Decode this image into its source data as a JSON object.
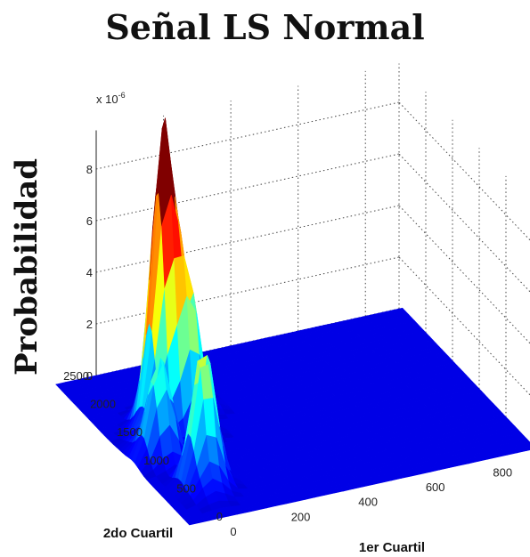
{
  "chart_data": {
    "type": "surface",
    "title": "Señal  LS Normal",
    "zlabel": "Probabilidad",
    "xlabel": "1er Cuartil",
    "ylabel": "2do Cuartil",
    "z_exponent_label": "x 10",
    "z_exponent": "-6",
    "colormap": "jet",
    "grid": true,
    "x_ticks": [
      "0",
      "200",
      "400",
      "600",
      "800"
    ],
    "y_ticks": [
      "0",
      "500",
      "1000",
      "1500",
      "2000",
      "2500"
    ],
    "z_ticks": [
      "0",
      "2",
      "4",
      "6",
      "8"
    ],
    "xlim": [
      0,
      900
    ],
    "ylim": [
      0,
      2500
    ],
    "zlim": [
      0,
      9
    ],
    "peaks": [
      {
        "x": 60,
        "y": 1600,
        "z": 9.3
      },
      {
        "x": 30,
        "y": 1450,
        "z": 7.0
      },
      {
        "x": 95,
        "y": 1350,
        "z": 5.4
      },
      {
        "x": -40,
        "y": 1050,
        "z": 4.0
      },
      {
        "x": 10,
        "y": 550,
        "z": 5.4
      },
      {
        "x": -10,
        "y": 330,
        "z": 0.7
      },
      {
        "x": -45,
        "y": 1300,
        "z": 0.7
      },
      {
        "x": 190,
        "y": 1650,
        "z": 0.5
      }
    ]
  }
}
